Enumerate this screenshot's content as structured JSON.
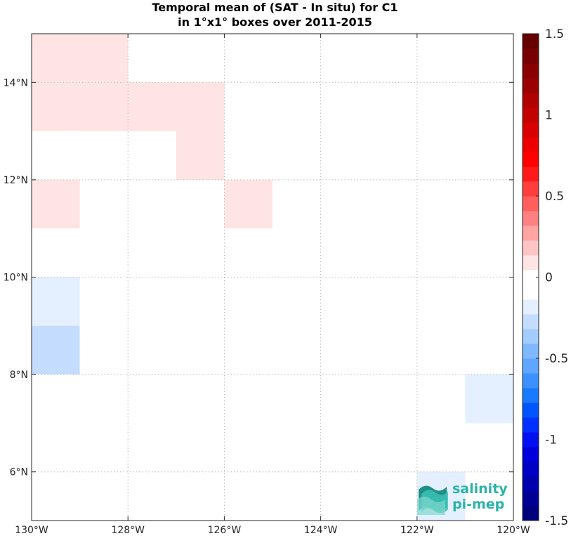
{
  "chart_data": {
    "type": "heatmap",
    "title_line1": "Temporal mean of (SAT - In situ) for C1",
    "title_line2": "in 1°x1° boxes over 2011-2015",
    "x_range": [
      -130,
      -120
    ],
    "y_range": [
      5,
      15
    ],
    "x_ticks": [
      -130,
      -128,
      -126,
      -124,
      -122,
      -120
    ],
    "x_tick_labels": [
      "130°W",
      "128°W",
      "126°W",
      "124°W",
      "122°W",
      "120°W"
    ],
    "y_ticks": [
      6,
      8,
      10,
      12,
      14
    ],
    "y_tick_labels": [
      "6°N",
      "8°N",
      "10°N",
      "12°N",
      "14°N"
    ],
    "grid": true,
    "cell_size_deg": 1,
    "cells": [
      {
        "lon": [
          -130,
          -129
        ],
        "lat": [
          14,
          15
        ],
        "value": 0.1
      },
      {
        "lon": [
          -129,
          -128
        ],
        "lat": [
          14,
          15
        ],
        "value": 0.1
      },
      {
        "lon": [
          -130,
          -129
        ],
        "lat": [
          13,
          14
        ],
        "value": 0.1
      },
      {
        "lon": [
          -129,
          -128
        ],
        "lat": [
          13,
          14
        ],
        "value": 0.1
      },
      {
        "lon": [
          -128,
          -127
        ],
        "lat": [
          13,
          14
        ],
        "value": 0.1
      },
      {
        "lon": [
          -127,
          -126
        ],
        "lat": [
          13,
          14
        ],
        "value": 0.1
      },
      {
        "lon": [
          -130,
          -129
        ],
        "lat": [
          12,
          13
        ],
        "value": -0.1
      },
      {
        "lon": [
          -127,
          -126
        ],
        "lat": [
          12,
          13
        ],
        "value": 0.1
      },
      {
        "lon": [
          -130,
          -129
        ],
        "lat": [
          11,
          12
        ],
        "value": 0.1
      },
      {
        "lon": [
          -129,
          -128
        ],
        "lat": [
          11,
          12
        ],
        "value": -0.1
      },
      {
        "lon": [
          -126,
          -125
        ],
        "lat": [
          11,
          12
        ],
        "value": 0.1
      },
      {
        "lon": [
          -127,
          -126
        ],
        "lat": [
          10,
          11
        ],
        "value": -0.1
      },
      {
        "lon": [
          -130,
          -129
        ],
        "lat": [
          9,
          10
        ],
        "value": -0.2
      },
      {
        "lon": [
          -127,
          -126
        ],
        "lat": [
          9,
          10
        ],
        "value": -0.1
      },
      {
        "lon": [
          -130,
          -129
        ],
        "lat": [
          8,
          9
        ],
        "value": -0.3
      },
      {
        "lon": [
          -129,
          -128
        ],
        "lat": [
          8,
          9
        ],
        "value": -0.1
      },
      {
        "lon": [
          -128,
          -127
        ],
        "lat": [
          8,
          9
        ],
        "value": -0.1
      },
      {
        "lon": [
          -124,
          -123
        ],
        "lat": [
          8,
          9
        ],
        "value": -0.1
      },
      {
        "lon": [
          -121,
          -120
        ],
        "lat": [
          8,
          9
        ],
        "value": -0.1
      },
      {
        "lon": [
          -128,
          -127
        ],
        "lat": [
          7,
          8
        ],
        "value": -0.1
      },
      {
        "lon": [
          -123,
          -122
        ],
        "lat": [
          7,
          8
        ],
        "value": -0.1
      },
      {
        "lon": [
          -122,
          -121
        ],
        "lat": [
          7,
          8
        ],
        "value": -0.1
      },
      {
        "lon": [
          -121,
          -120
        ],
        "lat": [
          7,
          8
        ],
        "value": -0.2
      },
      {
        "lon": [
          -129,
          -128
        ],
        "lat": [
          6,
          7
        ],
        "value": -0.1
      },
      {
        "lon": [
          -128,
          -127
        ],
        "lat": [
          6,
          7
        ],
        "value": -0.1
      },
      {
        "lon": [
          -125,
          -124
        ],
        "lat": [
          6,
          7
        ],
        "value": -0.1
      },
      {
        "lon": [
          -122,
          -121
        ],
        "lat": [
          6,
          7
        ],
        "value": -0.1
      },
      {
        "lon": [
          -125,
          -124
        ],
        "lat": [
          5,
          6
        ],
        "value": -0.1
      },
      {
        "lon": [
          -122,
          -121
        ],
        "lat": [
          5,
          6
        ],
        "value": -0.2
      }
    ],
    "colorbar": {
      "range": [
        -1.5,
        1.5
      ],
      "ticks": [
        -1.5,
        -1,
        -0.5,
        0,
        0.5,
        1,
        1.5
      ],
      "tick_labels": [
        "-1.5",
        "-1",
        "-0.5",
        "0",
        "0.5",
        "1",
        "1.5"
      ],
      "colors_bottom_to_top": [
        "#00007e",
        "#000095",
        "#0000ad",
        "#0000c4",
        "#0000dc",
        "#0010f2",
        "#0030ff",
        "#0055ff",
        "#1a7aff",
        "#3d91ff",
        "#5ea6ff",
        "#80b8ff",
        "#a3ccff",
        "#c4ddff",
        "#e4efff",
        "#ffffff",
        "#ffffff",
        "#ffe4e4",
        "#ffc4c4",
        "#ffa3a3",
        "#ff8080",
        "#ff5e5e",
        "#ff3d3d",
        "#ff1a1a",
        "#ff0000",
        "#ec0000",
        "#d80000",
        "#c40000",
        "#b00000",
        "#9a0000",
        "#880000",
        "#760000",
        "#660000"
      ]
    }
  },
  "logo": {
    "line1": "salinity",
    "line2": "pi-mep"
  }
}
